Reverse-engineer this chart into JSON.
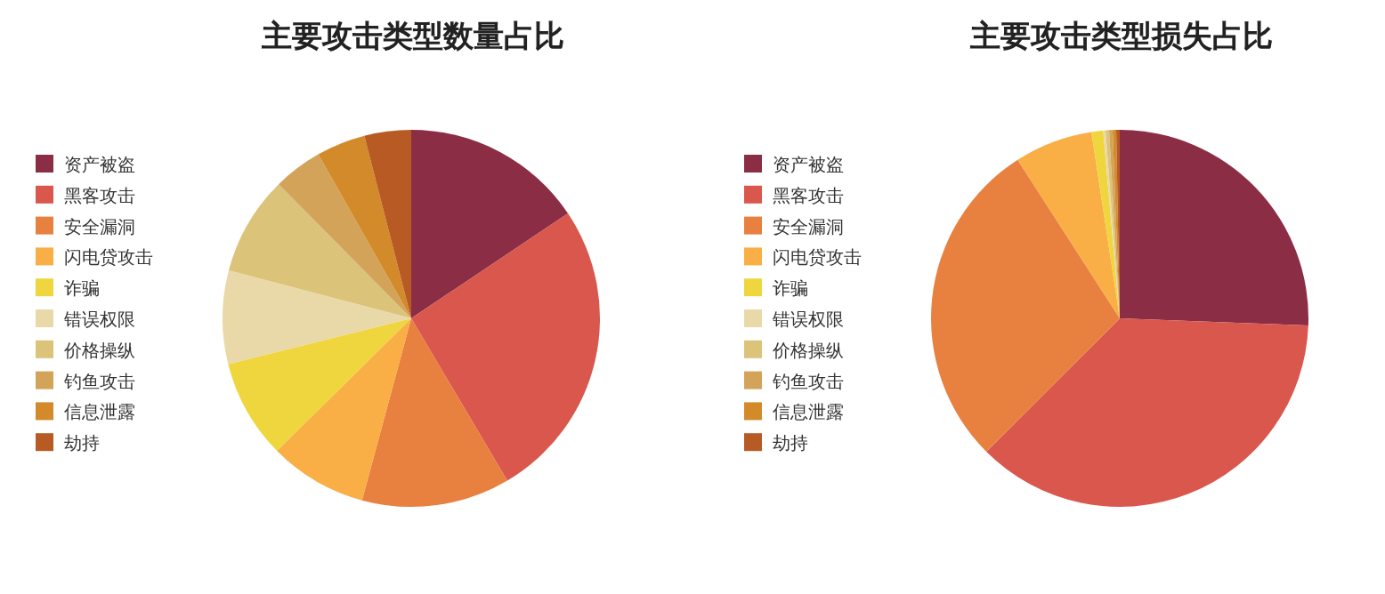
{
  "chart_data": [
    {
      "type": "pie",
      "title": "主要攻击类型数量占比",
      "categories": [
        "资产被盗",
        "黑客攻击",
        "安全漏洞",
        "闪电贷攻击",
        "诈骗",
        "错误权限",
        "价格操纵",
        "钓鱼攻击",
        "信息泄露",
        "劫持"
      ],
      "values": [
        15.6,
        25.9,
        12.7,
        8.4,
        8.5,
        8.0,
        8.5,
        4.2,
        4.2,
        4.0
      ],
      "colors": [
        "#8b2e45",
        "#d9574c",
        "#e8803f",
        "#f9ae46",
        "#efd63f",
        "#ead9a8",
        "#dcc37a",
        "#d3a35a",
        "#d38a2a",
        "#b85a24"
      ],
      "legend": "left"
    },
    {
      "type": "pie",
      "title": "主要攻击类型损失占比",
      "categories": [
        "资产被盗",
        "黑客攻击",
        "安全漏洞",
        "闪电贷攻击",
        "诈骗",
        "错误权限",
        "价格操纵",
        "钓鱼攻击",
        "信息泄露",
        "劫持"
      ],
      "values": [
        25.6,
        36.9,
        28.4,
        6.7,
        1.0,
        0.2,
        0.3,
        0.3,
        0.3,
        0.3
      ],
      "colors": [
        "#8b2e45",
        "#d9574c",
        "#e8803f",
        "#f9ae46",
        "#efd63f",
        "#ead9a8",
        "#dcc37a",
        "#d3a35a",
        "#d38a2a",
        "#b85a24"
      ],
      "legend": "left"
    }
  ]
}
